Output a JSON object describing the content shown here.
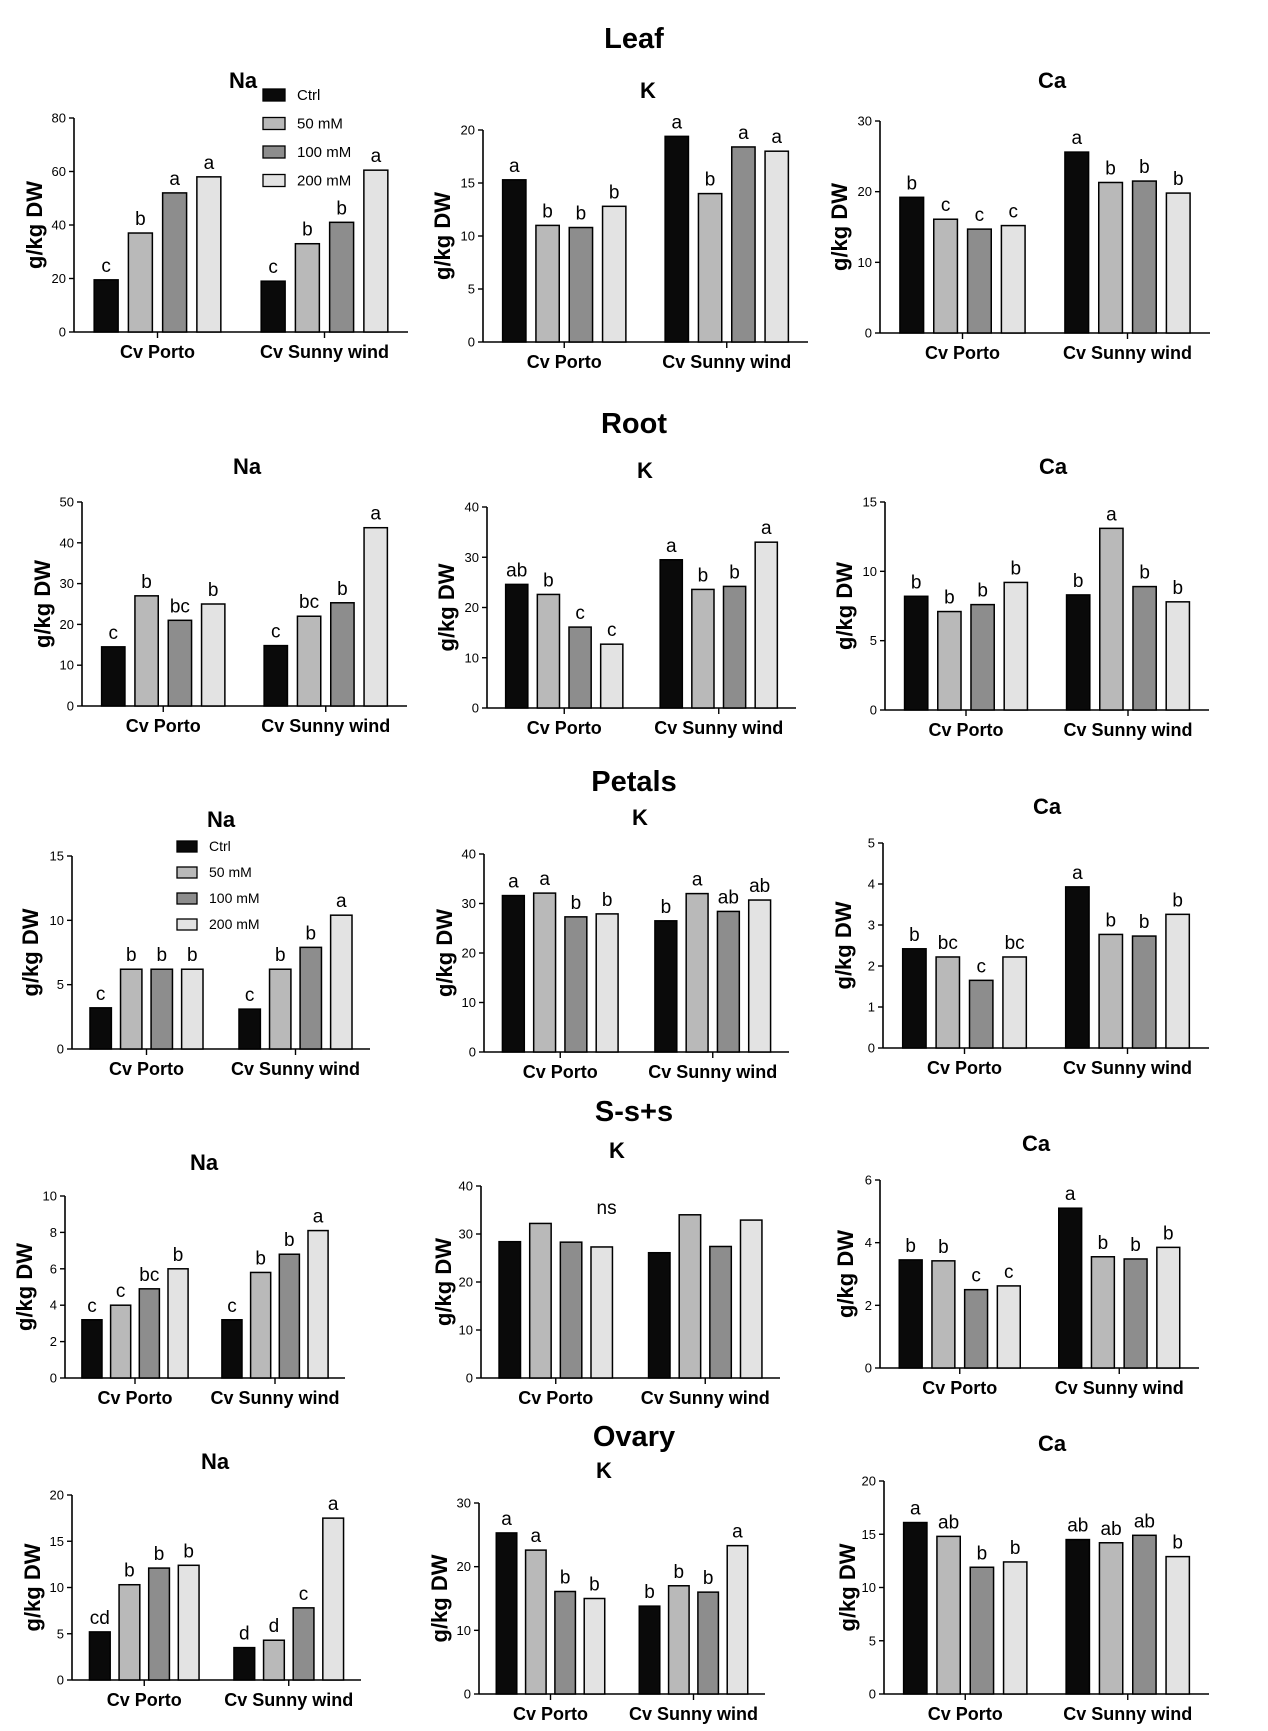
{
  "colors": {
    "ctrl": "#0a0a0a",
    "mm50": "#b9b9b9",
    "mm100": "#8d8d8d",
    "mm200": "#e3e3e3",
    "stroke": "#000000"
  },
  "sections": [
    "Leaf",
    "Root",
    "Petals",
    "S-s+s",
    "Ovary"
  ],
  "legend_entries": [
    "Ctrl",
    "50 mM",
    "100 mM",
    "200 mM"
  ],
  "chart_data": [
    {
      "type": "bar",
      "section": "Leaf",
      "title": "Na",
      "ylabel": "g/kg DW",
      "ylim": [
        0,
        80
      ],
      "ticks": [
        0,
        20,
        40,
        60,
        80
      ],
      "categories": [
        "Cv Porto",
        "Cv Sunny wind"
      ],
      "series": [
        {
          "name": "Ctrl",
          "values": [
            19.5,
            19
          ]
        },
        {
          "name": "50 mM",
          "values": [
            37,
            33
          ]
        },
        {
          "name": "100 mM",
          "values": [
            52,
            41
          ]
        },
        {
          "name": "200 mM",
          "values": [
            58,
            60.5
          ]
        }
      ],
      "letters": [
        [
          "c",
          "b",
          "a",
          "a"
        ],
        [
          "c",
          "b",
          "b",
          "a"
        ]
      ]
    },
    {
      "type": "bar",
      "section": "Leaf",
      "title": "K",
      "ylabel": "g/kg DW",
      "ylim": [
        0,
        20
      ],
      "ticks": [
        0,
        5,
        10,
        15,
        20
      ],
      "categories": [
        "Cv Porto",
        "Cv Sunny wind"
      ],
      "series": [
        {
          "name": "Ctrl",
          "values": [
            15.3,
            19.4
          ]
        },
        {
          "name": "50 mM",
          "values": [
            11,
            14
          ]
        },
        {
          "name": "100 mM",
          "values": [
            10.8,
            18.4
          ]
        },
        {
          "name": "200 mM",
          "values": [
            12.8,
            18
          ]
        }
      ],
      "letters": [
        [
          "a",
          "b",
          "b",
          "b"
        ],
        [
          "a",
          "b",
          "a",
          "a"
        ]
      ]
    },
    {
      "type": "bar",
      "section": "Leaf",
      "title": "Ca",
      "ylabel": "g/kg DW",
      "ylim": [
        0,
        30
      ],
      "ticks": [
        0,
        10,
        20,
        30
      ],
      "categories": [
        "Cv Porto",
        "Cv Sunny wind"
      ],
      "series": [
        {
          "name": "Ctrl",
          "values": [
            19.2,
            25.6
          ]
        },
        {
          "name": "50 mM",
          "values": [
            16.1,
            21.3
          ]
        },
        {
          "name": "100 mM",
          "values": [
            14.7,
            21.5
          ]
        },
        {
          "name": "200 mM",
          "values": [
            15.2,
            19.8
          ]
        }
      ],
      "letters": [
        [
          "b",
          "c",
          "c",
          "c"
        ],
        [
          "a",
          "b",
          "b",
          "b"
        ]
      ]
    },
    {
      "type": "bar",
      "section": "Root",
      "title": "Na",
      "ylabel": "g/kg DW",
      "ylim": [
        0,
        50
      ],
      "ticks": [
        0,
        10,
        20,
        30,
        40,
        50
      ],
      "categories": [
        "Cv Porto",
        "Cv Sunny wind"
      ],
      "series": [
        {
          "name": "Ctrl",
          "values": [
            14.5,
            14.8
          ]
        },
        {
          "name": "50 mM",
          "values": [
            27,
            22
          ]
        },
        {
          "name": "100 mM",
          "values": [
            21,
            25.3
          ]
        },
        {
          "name": "200 mM",
          "values": [
            25,
            43.7
          ]
        }
      ],
      "letters": [
        [
          "c",
          "b",
          "bc",
          "b"
        ],
        [
          "c",
          "bc",
          "b",
          "a"
        ]
      ]
    },
    {
      "type": "bar",
      "section": "Root",
      "title": "K",
      "ylabel": "g/kg DW",
      "ylim": [
        0,
        40
      ],
      "ticks": [
        0,
        10,
        20,
        30,
        40
      ],
      "categories": [
        "Cv Porto",
        "Cv Sunny wind"
      ],
      "series": [
        {
          "name": "Ctrl",
          "values": [
            24.6,
            29.5
          ]
        },
        {
          "name": "50 mM",
          "values": [
            22.6,
            23.6
          ]
        },
        {
          "name": "100 mM",
          "values": [
            16.1,
            24.2
          ]
        },
        {
          "name": "200 mM",
          "values": [
            12.7,
            33
          ]
        }
      ],
      "letters": [
        [
          "ab",
          "b",
          "c",
          "c"
        ],
        [
          "a",
          "b",
          "b",
          "a"
        ]
      ]
    },
    {
      "type": "bar",
      "section": "Root",
      "title": "Ca",
      "ylabel": "g/kg DW",
      "ylim": [
        0,
        15
      ],
      "ticks": [
        0,
        5,
        10,
        15
      ],
      "categories": [
        "Cv Porto",
        "Cv Sunny wind"
      ],
      "series": [
        {
          "name": "Ctrl",
          "values": [
            8.2,
            8.3
          ]
        },
        {
          "name": "50 mM",
          "values": [
            7.1,
            13.1
          ]
        },
        {
          "name": "100 mM",
          "values": [
            7.6,
            8.9
          ]
        },
        {
          "name": "200 mM",
          "values": [
            9.2,
            7.8
          ]
        }
      ],
      "letters": [
        [
          "b",
          "b",
          "b",
          "b"
        ],
        [
          "b",
          "a",
          "b",
          "b"
        ]
      ]
    },
    {
      "type": "bar",
      "section": "Petals",
      "title": "Na",
      "ylabel": "g/kg DW",
      "ylim": [
        0,
        15
      ],
      "ticks": [
        0,
        5,
        10,
        15
      ],
      "categories": [
        "Cv Porto",
        "Cv Sunny wind"
      ],
      "series": [
        {
          "name": "Ctrl",
          "values": [
            3.2,
            3.1
          ]
        },
        {
          "name": "50 mM",
          "values": [
            6.2,
            6.2
          ]
        },
        {
          "name": "100 mM",
          "values": [
            6.2,
            7.9
          ]
        },
        {
          "name": "200 mM",
          "values": [
            6.2,
            10.4
          ]
        }
      ],
      "letters": [
        [
          "c",
          "b",
          "b",
          "b"
        ],
        [
          "c",
          "b",
          "b",
          "a"
        ]
      ]
    },
    {
      "type": "bar",
      "section": "Petals",
      "title": "K",
      "ylabel": "g/kg DW",
      "ylim": [
        0,
        40
      ],
      "ticks": [
        0,
        10,
        20,
        30,
        40
      ],
      "categories": [
        "Cv Porto",
        "Cv Sunny wind"
      ],
      "series": [
        {
          "name": "Ctrl",
          "values": [
            31.6,
            26.5
          ]
        },
        {
          "name": "50 mM",
          "values": [
            32.1,
            32
          ]
        },
        {
          "name": "100 mM",
          "values": [
            27.3,
            28.4
          ]
        },
        {
          "name": "200 mM",
          "values": [
            27.9,
            30.7
          ]
        }
      ],
      "letters": [
        [
          "a",
          "a",
          "b",
          "b"
        ],
        [
          "b",
          "a",
          "ab",
          "ab"
        ]
      ]
    },
    {
      "type": "bar",
      "section": "Petals",
      "title": "Ca",
      "ylabel": "g/kg DW",
      "ylim": [
        0,
        5
      ],
      "ticks": [
        0,
        1,
        2,
        3,
        4,
        5
      ],
      "categories": [
        "Cv Porto",
        "Cv Sunny wind"
      ],
      "series": [
        {
          "name": "Ctrl",
          "values": [
            2.42,
            3.93
          ]
        },
        {
          "name": "50 mM",
          "values": [
            2.22,
            2.77
          ]
        },
        {
          "name": "100 mM",
          "values": [
            1.65,
            2.73
          ]
        },
        {
          "name": "200 mM",
          "values": [
            2.22,
            3.26
          ]
        }
      ],
      "letters": [
        [
          "b",
          "bc",
          "c",
          "bc"
        ],
        [
          "a",
          "b",
          "b",
          "b"
        ]
      ]
    },
    {
      "type": "bar",
      "section": "S-s+s",
      "title": "Na",
      "ylabel": "g/kg DW",
      "ylim": [
        0,
        10
      ],
      "ticks": [
        0,
        2,
        4,
        6,
        8,
        10
      ],
      "categories": [
        "Cv Porto",
        "Cv Sunny wind"
      ],
      "series": [
        {
          "name": "Ctrl",
          "values": [
            3.2,
            3.2
          ]
        },
        {
          "name": "50 mM",
          "values": [
            4,
            5.8
          ]
        },
        {
          "name": "100 mM",
          "values": [
            4.9,
            6.8
          ]
        },
        {
          "name": "200 mM",
          "values": [
            6,
            8.1
          ]
        }
      ],
      "letters": [
        [
          "c",
          "c",
          "bc",
          "b"
        ],
        [
          "c",
          "b",
          "b",
          "a"
        ]
      ]
    },
    {
      "type": "bar",
      "section": "S-s+s",
      "title": "K",
      "ylabel": "g/kg DW",
      "ylim": [
        0,
        40
      ],
      "ticks": [
        0,
        10,
        20,
        30,
        40
      ],
      "categories": [
        "Cv Porto",
        "Cv Sunny wind"
      ],
      "series": [
        {
          "name": "Ctrl",
          "values": [
            28.4,
            26.1
          ]
        },
        {
          "name": "50 mM",
          "values": [
            32.2,
            34
          ]
        },
        {
          "name": "100 mM",
          "values": [
            28.3,
            27.4
          ]
        },
        {
          "name": "200 mM",
          "values": [
            27.3,
            32.9
          ]
        }
      ],
      "letters": [
        [
          "",
          "",
          "",
          ""
        ],
        [
          "",
          "",
          "",
          ""
        ]
      ],
      "annotation": "ns"
    },
    {
      "type": "bar",
      "section": "S-s+s",
      "title": "Ca",
      "ylabel": "g/kg DW",
      "ylim": [
        0,
        6
      ],
      "ticks": [
        0,
        2,
        4,
        6
      ],
      "categories": [
        "Cv Porto",
        "Cv Sunny wind"
      ],
      "series": [
        {
          "name": "Ctrl",
          "values": [
            3.45,
            5.1
          ]
        },
        {
          "name": "50 mM",
          "values": [
            3.42,
            3.55
          ]
        },
        {
          "name": "100 mM",
          "values": [
            2.5,
            3.48
          ]
        },
        {
          "name": "200 mM",
          "values": [
            2.62,
            3.85
          ]
        }
      ],
      "letters": [
        [
          "b",
          "b",
          "c",
          "c"
        ],
        [
          "a",
          "b",
          "b",
          "b"
        ]
      ]
    },
    {
      "type": "bar",
      "section": "Ovary",
      "title": "Na",
      "ylabel": "g/kg DW",
      "ylim": [
        0,
        20
      ],
      "ticks": [
        0,
        5,
        10,
        15,
        20
      ],
      "categories": [
        "Cv Porto",
        "Cv Sunny wind"
      ],
      "series": [
        {
          "name": "Ctrl",
          "values": [
            5.2,
            3.5
          ]
        },
        {
          "name": "50 mM",
          "values": [
            10.3,
            4.3
          ]
        },
        {
          "name": "100 mM",
          "values": [
            12.1,
            7.8
          ]
        },
        {
          "name": "200 mM",
          "values": [
            12.4,
            17.5
          ]
        }
      ],
      "letters": [
        [
          "cd",
          "b",
          "b",
          "b"
        ],
        [
          "d",
          "d",
          "c",
          "a"
        ]
      ]
    },
    {
      "type": "bar",
      "section": "Ovary",
      "title": "K",
      "ylabel": "g/kg DW",
      "ylim": [
        0,
        30
      ],
      "ticks": [
        0,
        10,
        20,
        30
      ],
      "categories": [
        "Cv Porto",
        "Cv Sunny wind"
      ],
      "series": [
        {
          "name": "Ctrl",
          "values": [
            25.3,
            13.8
          ]
        },
        {
          "name": "50 mM",
          "values": [
            22.6,
            17
          ]
        },
        {
          "name": "100 mM",
          "values": [
            16.1,
            16
          ]
        },
        {
          "name": "200 mM",
          "values": [
            15,
            23.3
          ]
        }
      ],
      "letters": [
        [
          "a",
          "a",
          "b",
          "b"
        ],
        [
          "b",
          "b",
          "b",
          "a"
        ]
      ]
    },
    {
      "type": "bar",
      "section": "Ovary",
      "title": "Ca",
      "ylabel": "g/kg DW",
      "ylim": [
        0,
        20
      ],
      "ticks": [
        0,
        5,
        10,
        15,
        20
      ],
      "categories": [
        "Cv Porto",
        "Cv Sunny wind"
      ],
      "series": [
        {
          "name": "Ctrl",
          "values": [
            16.1,
            14.5
          ]
        },
        {
          "name": "50 mM",
          "values": [
            14.8,
            14.2
          ]
        },
        {
          "name": "100 mM",
          "values": [
            11.9,
            14.9
          ]
        },
        {
          "name": "200 mM",
          "values": [
            12.4,
            12.9
          ]
        }
      ],
      "letters": [
        [
          "a",
          "ab",
          "b",
          "b"
        ],
        [
          "ab",
          "ab",
          "ab",
          "b"
        ]
      ]
    }
  ]
}
